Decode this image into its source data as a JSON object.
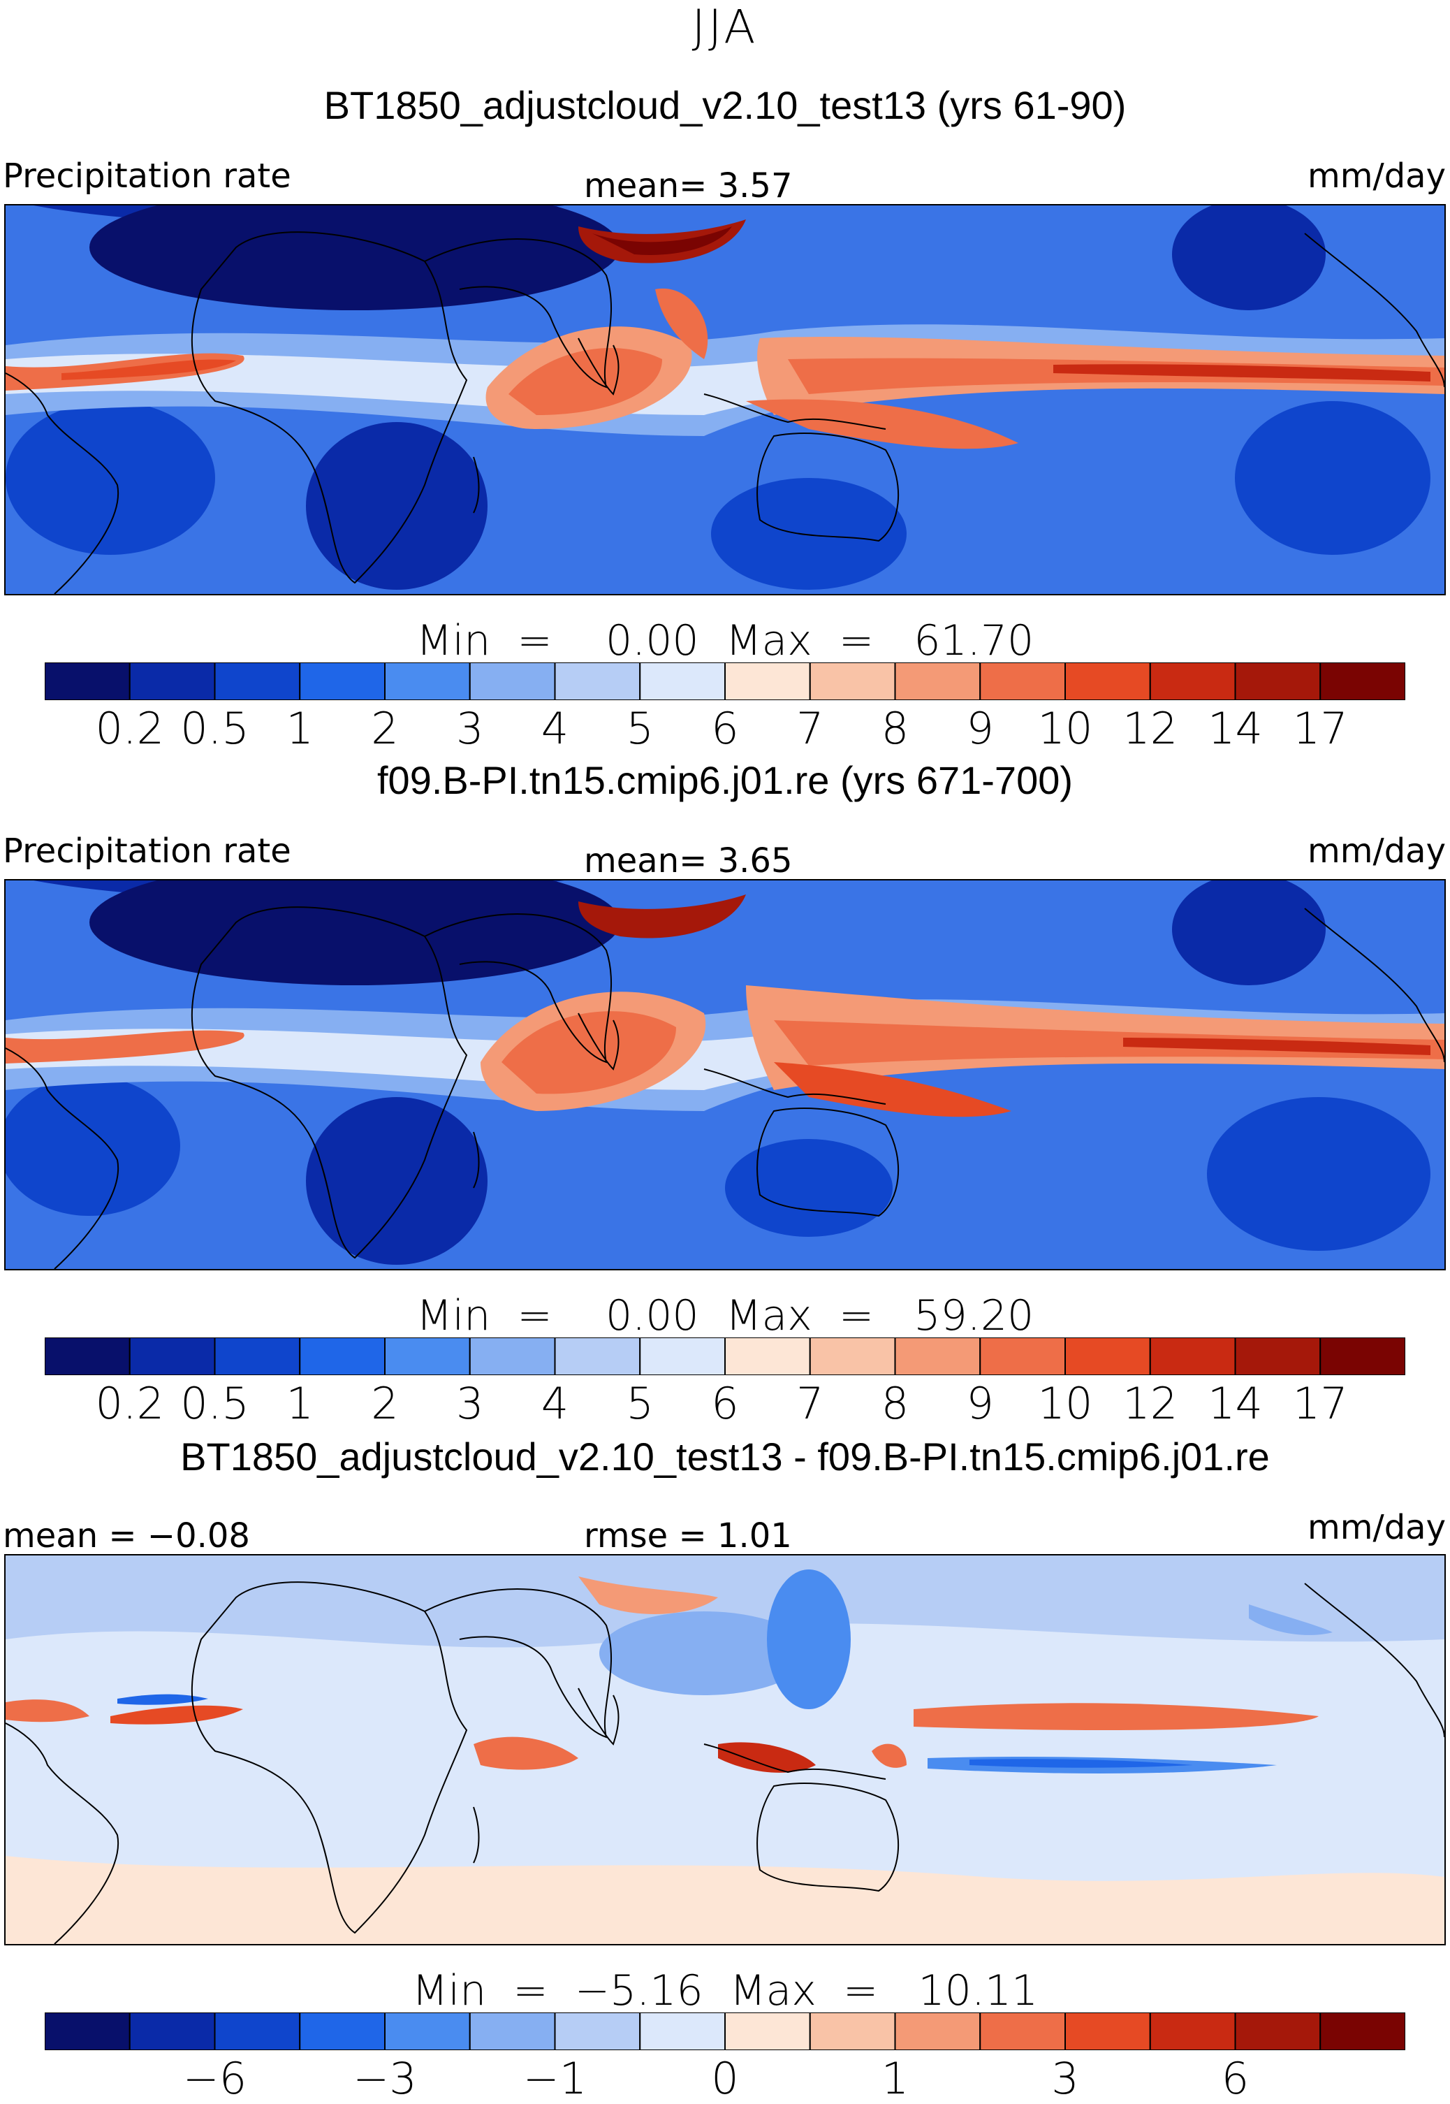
{
  "season": "JJA",
  "panels": [
    {
      "case_title": "BT1850_adjustcloud_v2.10_test13 (yrs 61-90)",
      "left_label": "Precipitation rate",
      "center_label": "mean=    3.57",
      "units": "mm/day",
      "minmax": "Min  =    0.00  Max  =   61.70",
      "levels": [
        "0.2",
        "0.5",
        "1",
        "2",
        "3",
        "4",
        "5",
        "6",
        "7",
        "8",
        "9",
        "10",
        "12",
        "14",
        "17"
      ],
      "colors": [
        "#08106b",
        "#0a2aa8",
        "#0f45cc",
        "#1f66e8",
        "#4a8cf0",
        "#86aff2",
        "#b6cdf5",
        "#dce8fb",
        "#fde6d6",
        "#f9c3a7",
        "#f49a76",
        "#ee6e48",
        "#e64a24",
        "#c92a12",
        "#a5180a",
        "#7a0402"
      ]
    },
    {
      "case_title": "f09.B-PI.tn15.cmip6.j01.re (yrs 671-700)",
      "left_label": "Precipitation rate",
      "center_label": "mean=    3.65",
      "units": "mm/day",
      "minmax": "Min  =    0.00  Max  =   59.20",
      "levels": [
        "0.2",
        "0.5",
        "1",
        "2",
        "3",
        "4",
        "5",
        "6",
        "7",
        "8",
        "9",
        "10",
        "12",
        "14",
        "17"
      ],
      "colors": [
        "#08106b",
        "#0a2aa8",
        "#0f45cc",
        "#1f66e8",
        "#4a8cf0",
        "#86aff2",
        "#b6cdf5",
        "#dce8fb",
        "#fde6d6",
        "#f9c3a7",
        "#f49a76",
        "#ee6e48",
        "#e64a24",
        "#c92a12",
        "#a5180a",
        "#7a0402"
      ]
    },
    {
      "case_title": "BT1850_adjustcloud_v2.10_test13 - f09.B-PI.tn15.cmip6.j01.re",
      "left_label": "mean =   −0.08",
      "center_label": "rmse =    1.01",
      "units": "mm/day",
      "minmax": "Min  =  −5.16  Max  =   10.11",
      "levels": [
        "−6",
        "−3",
        "−1",
        "0",
        "1",
        "3",
        "6"
      ],
      "colors": [
        "#08106b",
        "#0a2aa8",
        "#0f45cc",
        "#1f66e8",
        "#4a8cf0",
        "#86aff2",
        "#b6cdf5",
        "#dce8fb",
        "#fde6d6",
        "#f9c3a7",
        "#f49a76",
        "#ee6e48",
        "#e64a24",
        "#c92a12",
        "#a5180a",
        "#7a0402"
      ]
    }
  ]
}
